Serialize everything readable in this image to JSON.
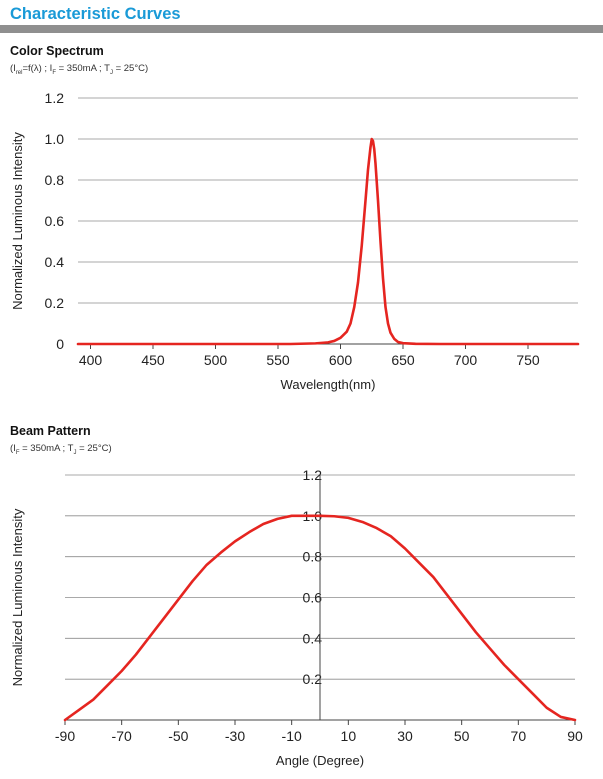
{
  "header": {
    "title": "Characteristic Curves"
  },
  "colors": {
    "accent": "#1a9ad7",
    "curve": "#e52520",
    "grid": "#8c8c8c",
    "bar": "#8f8f8f"
  },
  "spectrum": {
    "title": "Color Spectrum",
    "sub": {
      "open": "(I",
      "rel": "rel",
      "a": "=f(λ) ; I",
      "f": "F",
      "b": " = 350mA ; T",
      "j": "J",
      "c": " = 25°C)"
    }
  },
  "beam": {
    "title": "Beam Pattern",
    "sub": {
      "open": "(I",
      "f": "F",
      "b": " = 350mA ; T",
      "j": "J",
      "c": " = 25°C)"
    }
  },
  "chart_data": [
    {
      "type": "line",
      "title": "Color Spectrum",
      "xlabel": "Wavelength(nm)",
      "ylabel": "Normalized Luminous Intensity",
      "xlim": [
        390,
        790
      ],
      "ylim": [
        0,
        1.2
      ],
      "xticks": [
        400,
        450,
        500,
        550,
        600,
        650,
        700,
        750
      ],
      "xtick_labels": [
        "400",
        "450",
        "500",
        "550",
        "600",
        "650",
        "700",
        "750"
      ],
      "yticks": [
        0,
        0.2,
        0.4,
        0.6,
        0.8,
        1.0,
        1.2
      ],
      "ytick_labels": [
        "0",
        "0.2",
        "0.4",
        "0.6",
        "0.8",
        "1.0",
        "1.2"
      ],
      "grid": true,
      "series": [
        {
          "x": [
            390,
            560,
            580,
            590,
            595,
            600,
            605,
            608,
            611,
            614,
            617,
            620,
            622,
            624,
            625,
            626,
            627,
            628,
            630,
            632,
            634,
            636,
            638,
            640,
            643,
            646,
            650,
            660,
            680,
            790
          ],
          "y": [
            0,
            0,
            0.003,
            0.008,
            0.015,
            0.03,
            0.06,
            0.1,
            0.18,
            0.3,
            0.48,
            0.7,
            0.85,
            0.96,
            1.0,
            0.99,
            0.95,
            0.88,
            0.7,
            0.5,
            0.32,
            0.18,
            0.1,
            0.055,
            0.025,
            0.01,
            0.004,
            0.001,
            0,
            0
          ]
        }
      ]
    },
    {
      "type": "line",
      "title": "Beam Pattern",
      "xlabel": "Angle (Degree)",
      "ylabel": "Normalized Luminous Intensity",
      "xlim": [
        -90,
        90
      ],
      "ylim": [
        0,
        1.2
      ],
      "xticks": [
        -90,
        -70,
        -50,
        -30,
        -10,
        10,
        30,
        50,
        70,
        90
      ],
      "xtick_labels": [
        "-90",
        "-70",
        "-50",
        "-30",
        "-10",
        "10",
        "30",
        "50",
        "70",
        "90"
      ],
      "yticks": [
        0.2,
        0.4,
        0.6,
        0.8,
        1.0,
        1.2
      ],
      "ytick_labels": [
        "0.2",
        "0.4",
        "0.6",
        "0.8",
        "1.0",
        "1.2"
      ],
      "grid": true,
      "series": [
        {
          "x": [
            -90,
            -85,
            -80,
            -75,
            -70,
            -65,
            -60,
            -55,
            -50,
            -45,
            -40,
            -35,
            -30,
            -25,
            -20,
            -15,
            -10,
            -5,
            0,
            5,
            10,
            15,
            20,
            25,
            30,
            35,
            40,
            45,
            50,
            55,
            60,
            65,
            70,
            75,
            80,
            85,
            90
          ],
          "y": [
            0,
            0.05,
            0.1,
            0.17,
            0.24,
            0.32,
            0.41,
            0.5,
            0.59,
            0.68,
            0.76,
            0.82,
            0.875,
            0.92,
            0.96,
            0.985,
            1.0,
            1.0,
            1.0,
            0.998,
            0.99,
            0.97,
            0.94,
            0.9,
            0.84,
            0.77,
            0.7,
            0.61,
            0.52,
            0.43,
            0.35,
            0.27,
            0.2,
            0.13,
            0.06,
            0.015,
            0
          ]
        }
      ]
    }
  ]
}
